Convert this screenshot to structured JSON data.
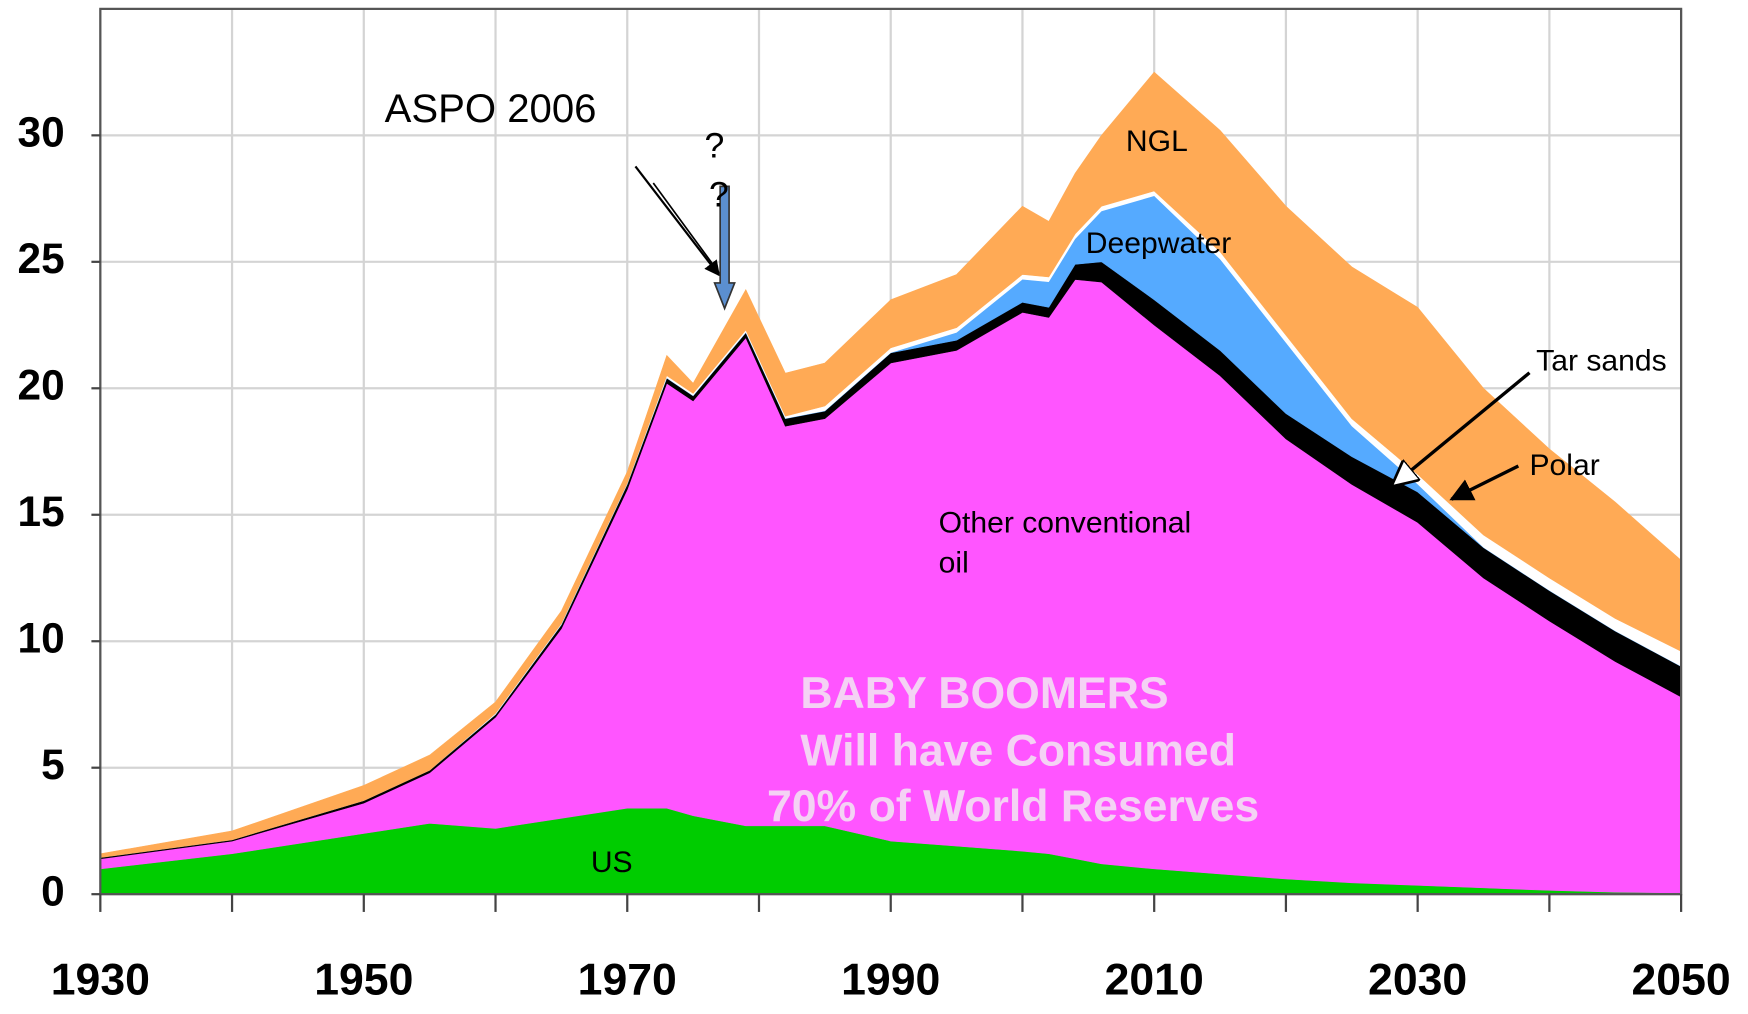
{
  "chart_data": {
    "type": "stacked_area",
    "x": [
      1930,
      1940,
      1950,
      1955,
      1960,
      1965,
      1970,
      1973,
      1975,
      1979,
      1982,
      1985,
      1990,
      1995,
      2000,
      2002,
      2004,
      2006,
      2010,
      2015,
      2020,
      2025,
      2030,
      2035,
      2040,
      2045,
      2050
    ],
    "series": [
      {
        "name": "US",
        "color": "#00cc00",
        "values": [
          1.0,
          1.6,
          2.4,
          2.8,
          2.6,
          3.0,
          3.4,
          3.4,
          3.1,
          2.7,
          2.7,
          2.7,
          2.1,
          1.9,
          1.7,
          1.6,
          1.4,
          1.2,
          1.0,
          0.8,
          0.6,
          0.45,
          0.35,
          0.25,
          0.15,
          0.08,
          0.05
        ]
      },
      {
        "name": "Other conventional oil",
        "color": "#ff55ff",
        "values": [
          0.4,
          0.5,
          1.2,
          2.0,
          4.4,
          7.5,
          12.6,
          16.8,
          16.4,
          19.3,
          15.8,
          16.1,
          18.9,
          19.6,
          21.3,
          21.2,
          22.9,
          23.0,
          21.5,
          19.7,
          17.4,
          15.75,
          14.35,
          12.25,
          10.65,
          9.12,
          7.75
        ]
      },
      {
        "name": "Tar sands",
        "color": "#000000",
        "values": [
          0.05,
          0.05,
          0.1,
          0.1,
          0.1,
          0.15,
          0.2,
          0.2,
          0.2,
          0.2,
          0.3,
          0.3,
          0.4,
          0.4,
          0.4,
          0.4,
          0.6,
          0.8,
          1.0,
          1.0,
          1.0,
          1.1,
          1.2,
          1.2,
          1.2,
          1.2,
          1.2
        ]
      },
      {
        "name": "Deepwater",
        "color": "#55aaff",
        "values": [
          0,
          0,
          0,
          0,
          0,
          0,
          0,
          0,
          0,
          0,
          0,
          0,
          0,
          0.3,
          0.9,
          1.0,
          1.0,
          2.0,
          4.1,
          3.6,
          2.8,
          1.2,
          0.3,
          0,
          0,
          0,
          0
        ]
      },
      {
        "name": "Polar",
        "color": "#ffffff",
        "values": [
          0,
          0,
          0,
          0,
          0.05,
          0.05,
          0.05,
          0.1,
          0.1,
          0.1,
          0.1,
          0.2,
          0.2,
          0.2,
          0.2,
          0.2,
          0.2,
          0.2,
          0.2,
          0.3,
          0.3,
          0.3,
          0.4,
          0.5,
          0.5,
          0.5,
          0.6
        ]
      },
      {
        "name": "NGL",
        "color": "#ffaa55",
        "values": [
          0.15,
          0.35,
          0.6,
          0.6,
          0.45,
          0.5,
          0.45,
          0.8,
          0.4,
          1.6,
          1.7,
          1.7,
          1.9,
          2.1,
          2.7,
          2.2,
          2.4,
          2.8,
          4.7,
          4.8,
          5.1,
          6.0,
          6.6,
          5.8,
          5.1,
          4.6,
          3.6
        ]
      }
    ],
    "xlim": [
      1930,
      2050
    ],
    "xticks": [
      1930,
      1950,
      1970,
      1990,
      2010,
      2030,
      2050
    ],
    "minor_xticks": [
      1940,
      1960,
      1980,
      2000,
      2020,
      2040
    ],
    "ylim": [
      0,
      35
    ],
    "yticks": [
      0,
      5,
      10,
      15,
      20,
      25,
      30
    ],
    "grid": true,
    "annotations": [
      "ASPO 2006",
      "?",
      "?",
      "BABY BOOMERS",
      "Will have Consumed",
      "70% of World Reserves"
    ]
  }
}
